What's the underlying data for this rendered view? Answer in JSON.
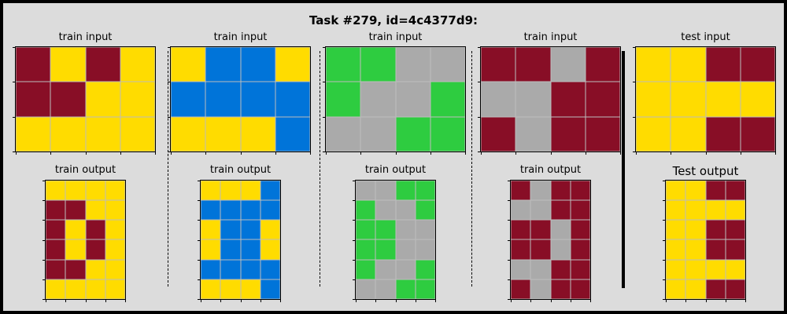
{
  "title": "Task #279, id=4c4377d9:",
  "colors": {
    "0": "#880e26",
    "1": "#ffdc00",
    "2": "#0074d9",
    "3": "#2ecc40",
    "4": "#aaaaaa"
  },
  "panels": [
    {
      "input_label": "train input",
      "output_label": "train output",
      "input": [
        [
          0,
          1,
          0,
          1
        ],
        [
          0,
          0,
          1,
          1
        ],
        [
          1,
          1,
          1,
          1
        ]
      ],
      "output": [
        [
          1,
          1,
          1,
          1
        ],
        [
          0,
          0,
          1,
          1
        ],
        [
          0,
          1,
          0,
          1
        ],
        [
          0,
          1,
          0,
          1
        ],
        [
          0,
          0,
          1,
          1
        ],
        [
          1,
          1,
          1,
          1
        ]
      ]
    },
    {
      "input_label": "train input",
      "output_label": "train output",
      "input": [
        [
          1,
          2,
          2,
          1
        ],
        [
          2,
          2,
          2,
          2
        ],
        [
          1,
          1,
          1,
          2
        ]
      ],
      "output": [
        [
          1,
          1,
          1,
          2
        ],
        [
          2,
          2,
          2,
          2
        ],
        [
          1,
          2,
          2,
          1
        ],
        [
          1,
          2,
          2,
          1
        ],
        [
          2,
          2,
          2,
          2
        ],
        [
          1,
          1,
          1,
          2
        ]
      ]
    },
    {
      "input_label": "train input",
      "output_label": "train output",
      "input": [
        [
          3,
          3,
          4,
          4
        ],
        [
          3,
          4,
          4,
          3
        ],
        [
          4,
          4,
          3,
          3
        ]
      ],
      "output": [
        [
          4,
          4,
          3,
          3
        ],
        [
          3,
          4,
          4,
          3
        ],
        [
          3,
          3,
          4,
          4
        ],
        [
          3,
          3,
          4,
          4
        ],
        [
          3,
          4,
          4,
          3
        ],
        [
          4,
          4,
          3,
          3
        ]
      ]
    },
    {
      "input_label": "train input",
      "output_label": "train output",
      "input": [
        [
          0,
          0,
          4,
          0
        ],
        [
          4,
          4,
          0,
          0
        ],
        [
          0,
          4,
          0,
          0
        ]
      ],
      "output": [
        [
          0,
          4,
          0,
          0
        ],
        [
          4,
          4,
          0,
          0
        ],
        [
          0,
          0,
          4,
          0
        ],
        [
          0,
          0,
          4,
          0
        ],
        [
          4,
          4,
          0,
          0
        ],
        [
          0,
          4,
          0,
          0
        ]
      ]
    },
    {
      "input_label": "test input",
      "output_label": "Test output",
      "input": [
        [
          1,
          1,
          0,
          0
        ],
        [
          1,
          1,
          1,
          1
        ],
        [
          1,
          1,
          0,
          0
        ]
      ],
      "output": [
        [
          1,
          1,
          0,
          0
        ],
        [
          1,
          1,
          1,
          1
        ],
        [
          1,
          1,
          0,
          0
        ],
        [
          1,
          1,
          0,
          0
        ],
        [
          1,
          1,
          1,
          1
        ],
        [
          1,
          1,
          0,
          0
        ]
      ]
    }
  ]
}
